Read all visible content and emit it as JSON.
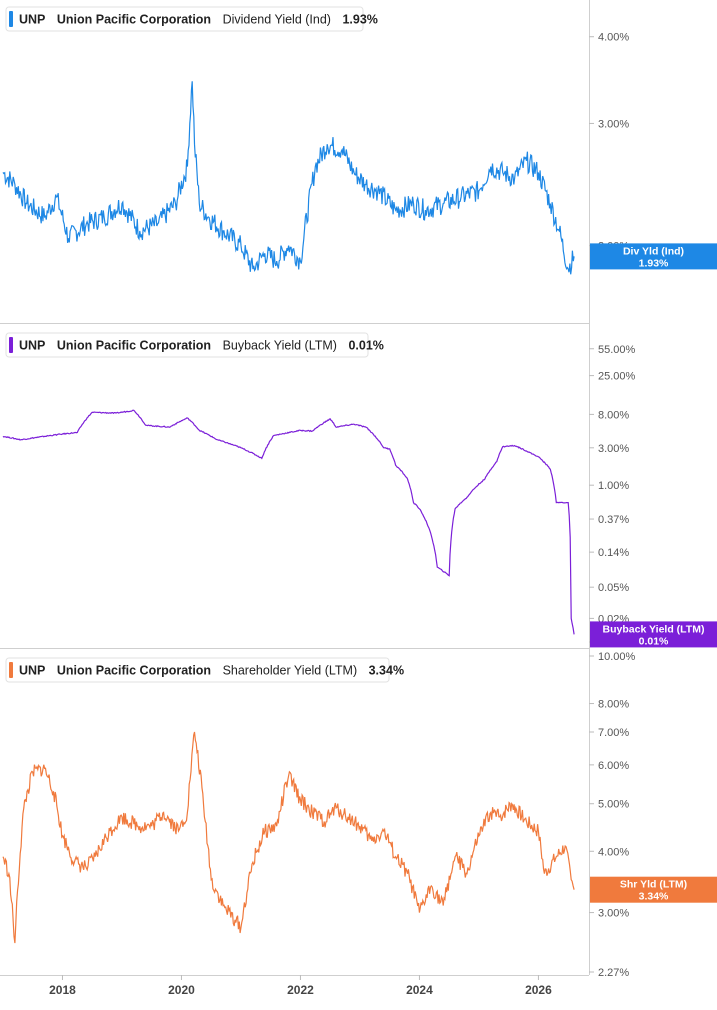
{
  "x_axis": {
    "labels": [
      "2018",
      "2020",
      "2022",
      "2024",
      "2026"
    ],
    "values": [
      2018,
      2020,
      2022,
      2024,
      2026
    ],
    "range": [
      2016.95,
      2026.85
    ]
  },
  "chart_data": [
    {
      "type": "line",
      "ticker": "UNP",
      "company": "Union Pacific Corporation",
      "series_name": "Dividend Yield (Ind)",
      "current_value_label": "1.93%",
      "color": "#1E88E5",
      "y_scale": "log",
      "ylim": [
        1.67,
        4.4
      ],
      "y_ticks": [
        4.0,
        3.0,
        2.0
      ],
      "y_tick_labels": [
        "4.00%",
        "3.00%",
        "2.00%"
      ],
      "end_tag": {
        "line1": "Div Yld (Ind)",
        "line2": "1.93%",
        "value": 1.93
      },
      "x": [
        2017.0,
        2017.2,
        2017.4,
        2017.7,
        2017.9,
        2018.1,
        2018.4,
        2018.7,
        2019.0,
        2019.3,
        2019.6,
        2019.9,
        2020.1,
        2020.18,
        2020.22,
        2020.3,
        2020.45,
        2020.7,
        2021.0,
        2021.2,
        2021.4,
        2021.6,
        2021.8,
        2022.0,
        2022.25,
        2022.45,
        2022.7,
        2022.9,
        2023.1,
        2023.3,
        2023.6,
        2023.9,
        2024.1,
        2024.4,
        2024.7,
        2025.0,
        2025.2,
        2025.4,
        2025.6,
        2025.8,
        2026.0,
        2026.2,
        2026.35,
        2026.5,
        2026.6
      ],
      "y": [
        2.55,
        2.45,
        2.3,
        2.2,
        2.35,
        2.05,
        2.15,
        2.2,
        2.3,
        2.1,
        2.15,
        2.3,
        2.6,
        3.45,
        2.8,
        2.3,
        2.2,
        2.1,
        2.0,
        1.85,
        1.95,
        1.9,
        2.0,
        1.9,
        2.6,
        2.8,
        2.75,
        2.55,
        2.45,
        2.4,
        2.25,
        2.3,
        2.25,
        2.3,
        2.35,
        2.4,
        2.6,
        2.55,
        2.5,
        2.65,
        2.55,
        2.3,
        2.1,
        1.85,
        1.93
      ]
    },
    {
      "type": "line",
      "ticker": "UNP",
      "company": "Union Pacific Corporation",
      "series_name": "Buyback Yield (LTM)",
      "current_value_label": "0.01%",
      "color": "#7B1FD8",
      "y_scale": "log",
      "ylim": [
        0.01,
        80
      ],
      "y_ticks": [
        55.0,
        25.0,
        8.0,
        3.0,
        1.0,
        0.37,
        0.14,
        0.05,
        0.02,
        0.01
      ],
      "y_tick_labels": [
        "55.00%",
        "25.00%",
        "8.00%",
        "3.00%",
        "1.00%",
        "0.37%",
        "0.14%",
        "0.05%",
        "0.02%",
        "0.01%"
      ],
      "end_tag": {
        "line1": "Buyback Yield (LTM)",
        "line2": "0.01%",
        "value": 0.0125
      },
      "x": [
        2017.0,
        2017.3,
        2017.6,
        2018.0,
        2018.25,
        2018.5,
        2018.9,
        2019.2,
        2019.4,
        2019.8,
        2020.1,
        2020.3,
        2020.6,
        2021.0,
        2021.35,
        2021.55,
        2022.0,
        2022.2,
        2022.5,
        2022.6,
        2022.9,
        2023.1,
        2023.4,
        2023.5,
        2023.6,
        2023.8,
        2023.9,
        2024.0,
        2024.3,
        2024.5,
        2024.6,
        2024.8,
        2025.1,
        2025.3,
        2025.4,
        2025.6,
        2025.9,
        2026.0,
        2026.2,
        2026.3,
        2026.5,
        2026.55,
        2026.6
      ],
      "y": [
        4.2,
        3.8,
        4.1,
        4.5,
        4.7,
        8.5,
        8.3,
        9.0,
        5.8,
        5.5,
        7.2,
        5.0,
        3.8,
        3.0,
        2.2,
        4.3,
        5.0,
        4.9,
        7.0,
        5.5,
        6.0,
        5.5,
        3.0,
        2.9,
        1.8,
        1.2,
        0.6,
        0.5,
        0.09,
        0.07,
        0.5,
        0.7,
        1.2,
        2.0,
        3.1,
        3.2,
        2.5,
        2.3,
        1.6,
        0.6,
        0.6,
        0.02,
        0.0125
      ]
    },
    {
      "type": "line",
      "ticker": "UNP",
      "company": "Union Pacific Corporation",
      "series_name": "Shareholder Yield (LTM)",
      "current_value_label": "3.34%",
      "color": "#F07A3D",
      "y_scale": "log",
      "ylim": [
        2.27,
        10.0
      ],
      "y_ticks": [
        10.0,
        8.0,
        7.0,
        6.0,
        5.0,
        4.0,
        3.0,
        2.27
      ],
      "y_tick_labels": [
        "10.00%",
        "8.00%",
        "7.00%",
        "6.00%",
        "5.00%",
        "4.00%",
        "3.00%",
        "2.27%"
      ],
      "end_tag": {
        "line1": "Shr Yld (LTM)",
        "line2": "3.34%",
        "value": 3.34
      },
      "x": [
        2017.0,
        2017.1,
        2017.2,
        2017.35,
        2017.5,
        2017.7,
        2017.85,
        2018.0,
        2018.2,
        2018.4,
        2018.55,
        2018.8,
        2019.0,
        2019.3,
        2019.5,
        2019.7,
        2019.95,
        2020.1,
        2020.22,
        2020.4,
        2020.5,
        2020.7,
        2020.9,
        2021.0,
        2021.2,
        2021.4,
        2021.6,
        2021.8,
        2022.0,
        2022.2,
        2022.4,
        2022.6,
        2022.8,
        2023.0,
        2023.2,
        2023.4,
        2023.6,
        2023.8,
        2024.0,
        2024.2,
        2024.4,
        2024.6,
        2024.8,
        2025.0,
        2025.2,
        2025.35,
        2025.55,
        2025.8,
        2026.0,
        2026.1,
        2026.3,
        2026.45,
        2026.55,
        2026.6
      ],
      "y": [
        3.9,
        3.6,
        2.6,
        4.9,
        5.8,
        5.9,
        5.3,
        4.3,
        3.8,
        3.7,
        3.9,
        4.4,
        4.7,
        4.5,
        4.5,
        4.8,
        4.4,
        4.8,
        7.0,
        4.6,
        3.5,
        3.1,
        2.9,
        2.8,
        3.8,
        4.4,
        4.5,
        5.7,
        5.1,
        4.8,
        4.6,
        4.9,
        4.7,
        4.5,
        4.2,
        4.4,
        3.9,
        3.6,
        3.0,
        3.4,
        3.1,
        3.9,
        3.6,
        4.3,
        4.8,
        4.7,
        5.0,
        4.6,
        4.4,
        3.6,
        3.9,
        4.1,
        3.5,
        3.34
      ]
    }
  ]
}
